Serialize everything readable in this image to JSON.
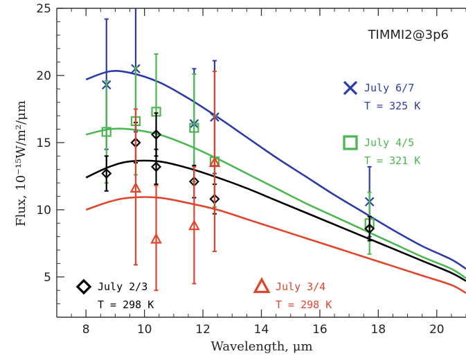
{
  "chart_data": {
    "type": "scatter",
    "instrument_label": "TIMMI2@3p6",
    "xlabel": "Wavelength, μm",
    "ylabel": "Flux, 10⁻¹⁵W/m²/μm",
    "xlim": [
      7.0,
      21.0
    ],
    "ylim": [
      2.0,
      25.0
    ],
    "xticks": [
      8,
      10,
      12,
      14,
      16,
      18,
      20
    ],
    "yticks": [
      5,
      10,
      15,
      20,
      25
    ],
    "grid": false,
    "series": [
      {
        "key": "july67",
        "name": "July 6/7",
        "temperature": "T = 325 K",
        "color": "#2b3ba8",
        "marker": "x",
        "curve": {
          "x": [
            8,
            8.8,
            9.5,
            10.5,
            11.5,
            12.5,
            13.5,
            14.5,
            15.5,
            16.5,
            17.5,
            18.5,
            19.5,
            20.5,
            21
          ],
          "y": [
            19.7,
            20.3,
            20.2,
            19.5,
            18.3,
            16.9,
            15.4,
            13.9,
            12.5,
            11.1,
            9.8,
            8.5,
            7.3,
            6.3,
            5.6
          ]
        },
        "points": [
          {
            "x": 8.7,
            "y": 19.3,
            "low": 14.5,
            "high": 24.2
          },
          {
            "x": 9.7,
            "y": 20.5,
            "low": 15.8,
            "high": 25.3
          },
          {
            "x": 11.7,
            "y": 16.4,
            "low": 12.3,
            "high": 20.5
          },
          {
            "x": 12.4,
            "y": 16.9,
            "low": 12.7,
            "high": 21.1
          },
          {
            "x": 17.7,
            "y": 10.6,
            "low": 8.0,
            "high": 13.2
          }
        ]
      },
      {
        "key": "july45",
        "name": "July 4/5",
        "temperature": "T = 321 K",
        "color": "#4cb650",
        "marker": "square",
        "curve": {
          "x": [
            8,
            8.8,
            9.5,
            10.5,
            11.5,
            12.5,
            13.5,
            14.5,
            15.5,
            16.5,
            17.5,
            18.5,
            19.5,
            20.5,
            21
          ],
          "y": [
            15.6,
            16.0,
            16.0,
            15.6,
            14.8,
            13.8,
            12.7,
            11.6,
            10.5,
            9.5,
            8.5,
            7.5,
            6.5,
            5.6,
            4.9
          ]
        },
        "points": [
          {
            "x": 8.7,
            "y": 15.8,
            "low": 12.0,
            "high": 19.6
          },
          {
            "x": 9.7,
            "y": 16.6,
            "low": 12.6,
            "high": 20.6
          },
          {
            "x": 10.4,
            "y": 17.3,
            "low": 13.0,
            "high": 21.6
          },
          {
            "x": 11.7,
            "y": 16.1,
            "low": 12.1,
            "high": 20.1
          },
          {
            "x": 12.4,
            "y": 13.6,
            "low": 10.2,
            "high": 17.0
          },
          {
            "x": 17.7,
            "y": 9.0,
            "low": 6.7,
            "high": 11.3
          }
        ]
      },
      {
        "key": "july23",
        "name": "July 2/3",
        "temperature": "T = 298 K",
        "color": "#000000",
        "marker": "diamond",
        "curve": {
          "x": [
            8,
            8.8,
            9.5,
            10.5,
            11.5,
            12.5,
            13.5,
            14.5,
            15.5,
            16.5,
            17.5,
            18.5,
            19.5,
            20.5,
            21
          ],
          "y": [
            12.4,
            13.2,
            13.6,
            13.6,
            13.1,
            12.4,
            11.6,
            10.7,
            9.8,
            8.9,
            8.0,
            7.1,
            6.2,
            5.3,
            4.7
          ]
        },
        "points": [
          {
            "x": 8.7,
            "y": 12.7,
            "low": 11.4,
            "high": 14.0
          },
          {
            "x": 9.7,
            "y": 15.0,
            "low": 13.5,
            "high": 16.5
          },
          {
            "x": 10.4,
            "y": 15.6,
            "low": 14.0,
            "high": 17.2
          },
          {
            "x": 10.4,
            "y": 13.2,
            "low": 11.9,
            "high": 14.5
          },
          {
            "x": 11.7,
            "y": 12.1,
            "low": 10.9,
            "high": 13.3
          },
          {
            "x": 12.4,
            "y": 10.8,
            "low": 9.7,
            "high": 11.9
          },
          {
            "x": 17.7,
            "y": 8.6,
            "low": 7.7,
            "high": 9.5
          }
        ]
      },
      {
        "key": "july34",
        "name": "July 3/4",
        "temperature": "T = 298 K",
        "color": "#e0452b",
        "marker": "triangle",
        "curve": {
          "x": [
            8,
            8.8,
            9.5,
            10.5,
            11.5,
            12.5,
            13.5,
            14.5,
            15.5,
            16.5,
            17.5,
            18.5,
            19.5,
            20.5,
            21
          ],
          "y": [
            10.0,
            10.6,
            10.9,
            10.9,
            10.5,
            10.0,
            9.3,
            8.6,
            7.9,
            7.2,
            6.5,
            5.8,
            5.1,
            4.4,
            3.8
          ]
        },
        "points": [
          {
            "x": 9.7,
            "y": 11.6,
            "low": 5.9,
            "high": 17.5
          },
          {
            "x": 10.4,
            "y": 7.8,
            "low": 4.0,
            "high": 11.8
          },
          {
            "x": 11.7,
            "y": 8.8,
            "low": 4.5,
            "high": 13.2
          },
          {
            "x": 12.4,
            "y": 13.5,
            "low": 6.9,
            "high": 20.3
          }
        ]
      }
    ],
    "legend": [
      {
        "series": "july67",
        "position": "right-upper"
      },
      {
        "series": "july45",
        "position": "right-middle"
      },
      {
        "series": "july23",
        "position": "bottom-left"
      },
      {
        "series": "july34",
        "position": "bottom-center"
      }
    ]
  }
}
